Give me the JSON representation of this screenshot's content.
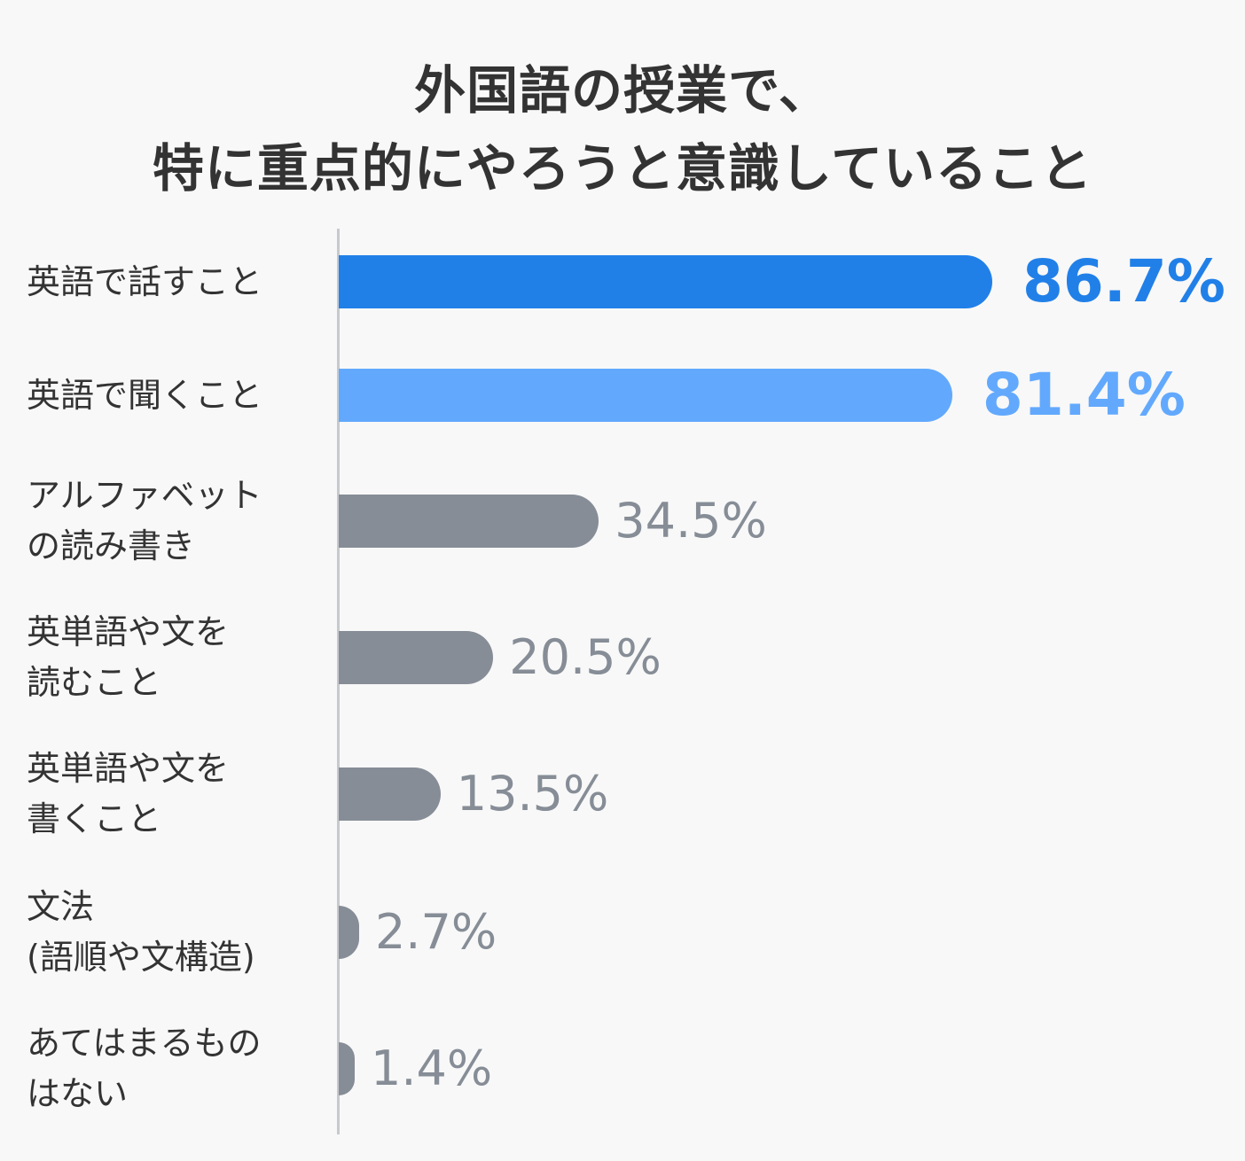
{
  "title": {
    "line1": "外国語の授業で、",
    "line2": "特に重点的にやろうと意識していること"
  },
  "colors": {
    "primary": "#2180e8",
    "secondary": "#62a9fd",
    "neutral": "#868d96",
    "axis": "#c6c9cd",
    "text": "#333333",
    "background": "#f8f8f8"
  },
  "items": [
    {
      "label_lines": [
        "英語で話すこと"
      ],
      "value": 86.7,
      "value_label": "86.7%"
    },
    {
      "label_lines": [
        "英語で聞くこと"
      ],
      "value": 81.4,
      "value_label": "81.4%"
    },
    {
      "label_lines": [
        "アルファベット",
        "の読み書き"
      ],
      "value": 34.5,
      "value_label": "34.5%"
    },
    {
      "label_lines": [
        "英単語や文を",
        "読むこと"
      ],
      "value": 20.5,
      "value_label": "20.5%"
    },
    {
      "label_lines": [
        "英単語や文を",
        "書くこと"
      ],
      "value": 13.5,
      "value_label": "13.5%"
    },
    {
      "label_lines": [
        "文法",
        "(語順や文構造)"
      ],
      "value": 2.7,
      "value_label": "2.7%"
    },
    {
      "label_lines": [
        "あてはまるもの",
        "はない"
      ],
      "value": 1.4,
      "value_label": "1.4%"
    }
  ],
  "chart_data": {
    "type": "bar",
    "orientation": "horizontal",
    "title": "外国語の授業で、特に重点的にやろうと意識していること",
    "categories": [
      "英語で話すこと",
      "英語で聞くこと",
      "アルファベットの読み書き",
      "英単語や文を読むこと",
      "英単語や文を書くこと",
      "文法(語順や文構造)",
      "あてはまるものはない"
    ],
    "values": [
      86.7,
      81.4,
      34.5,
      20.5,
      13.5,
      2.7,
      1.4
    ],
    "unit": "%",
    "xlabel": "",
    "ylabel": "",
    "grid": false,
    "legend": null,
    "data_labels": true,
    "bar_colors": [
      "#2180e8",
      "#62a9fd",
      "#868d96",
      "#868d96",
      "#868d96",
      "#868d96",
      "#868d96"
    ]
  }
}
